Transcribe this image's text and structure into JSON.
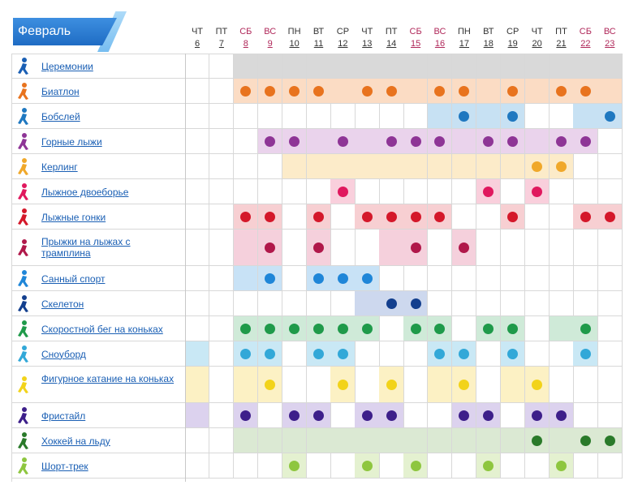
{
  "month": "Февраль",
  "days": [
    {
      "dow": "ЧТ",
      "num": "6",
      "weekend": false
    },
    {
      "dow": "ПТ",
      "num": "7",
      "weekend": false
    },
    {
      "dow": "СБ",
      "num": "8",
      "weekend": true
    },
    {
      "dow": "ВС",
      "num": "9",
      "weekend": true
    },
    {
      "dow": "ПН",
      "num": "10",
      "weekend": false
    },
    {
      "dow": "ВТ",
      "num": "11",
      "weekend": false
    },
    {
      "dow": "СР",
      "num": "12",
      "weekend": false
    },
    {
      "dow": "ЧТ",
      "num": "13",
      "weekend": false
    },
    {
      "dow": "ПТ",
      "num": "14",
      "weekend": false
    },
    {
      "dow": "СБ",
      "num": "15",
      "weekend": true
    },
    {
      "dow": "ВС",
      "num": "16",
      "weekend": true
    },
    {
      "dow": "ПН",
      "num": "17",
      "weekend": false
    },
    {
      "dow": "ВТ",
      "num": "18",
      "weekend": false
    },
    {
      "dow": "СР",
      "num": "19",
      "weekend": false
    },
    {
      "dow": "ЧТ",
      "num": "20",
      "weekend": false
    },
    {
      "dow": "ПТ",
      "num": "21",
      "weekend": false
    },
    {
      "dow": "СБ",
      "num": "22",
      "weekend": true
    },
    {
      "dow": "ВС",
      "num": "23",
      "weekend": true
    }
  ],
  "sports": [
    {
      "name": "Церемонии",
      "slug": "ceremonies",
      "icon": "torch-icon",
      "color": "#1a5fb4",
      "light": "#d9d9d9",
      "tall": false,
      "events": [
        0,
        0,
        1,
        1,
        1,
        1,
        1,
        1,
        1,
        1,
        1,
        1,
        1,
        1,
        1,
        1,
        1,
        1
      ],
      "medals": []
    },
    {
      "name": "Биатлон",
      "slug": "biathlon",
      "icon": "biathlon-icon",
      "color": "#e8731e",
      "light": "#fbdcc4",
      "tall": false,
      "events": [
        0,
        0,
        1,
        1,
        1,
        1,
        1,
        1,
        1,
        1,
        1,
        1,
        1,
        1,
        1,
        1,
        1,
        1
      ],
      "medals": [
        2,
        3,
        4,
        5,
        7,
        8,
        10,
        11,
        13,
        15,
        16
      ]
    },
    {
      "name": "Бобслей",
      "slug": "bobsleigh",
      "icon": "bobsleigh-icon",
      "color": "#1f78c0",
      "light": "#c7e1f3",
      "tall": false,
      "events": [
        0,
        0,
        0,
        0,
        0,
        0,
        0,
        0,
        0,
        0,
        1,
        1,
        1,
        1,
        0,
        0,
        1,
        1
      ],
      "medals": [
        11,
        13,
        17
      ]
    },
    {
      "name": "Горные лыжи",
      "slug": "alpine-skiing",
      "icon": "alpine-skiing-icon",
      "color": "#8e3596",
      "light": "#ead3ec",
      "tall": false,
      "events": [
        0,
        0,
        0,
        1,
        1,
        1,
        1,
        1,
        1,
        1,
        1,
        1,
        1,
        1,
        1,
        1,
        1,
        0
      ],
      "medals": [
        3,
        4,
        6,
        8,
        9,
        10,
        12,
        13,
        15,
        16
      ]
    },
    {
      "name": "Керлинг",
      "slug": "curling",
      "icon": "curling-icon",
      "color": "#f0a82a",
      "light": "#fcebc9",
      "tall": false,
      "events": [
        0,
        0,
        0,
        0,
        1,
        1,
        1,
        1,
        1,
        1,
        1,
        1,
        1,
        1,
        1,
        1,
        0,
        0
      ],
      "medals": [
        14,
        15
      ]
    },
    {
      "name": "Лыжное двоеборье",
      "slug": "nordic-combined",
      "icon": "nordic-combined-icon",
      "color": "#e0185e",
      "light": "#f9cfdc",
      "tall": false,
      "events": [
        0,
        0,
        0,
        0,
        0,
        0,
        1,
        0,
        0,
        0,
        0,
        0,
        1,
        0,
        1,
        0,
        0,
        0
      ],
      "medals": [
        6,
        12,
        14
      ]
    },
    {
      "name": "Лыжные гонки",
      "slug": "cross-country",
      "icon": "cross-country-icon",
      "color": "#d4182a",
      "light": "#f7cfd2",
      "tall": false,
      "events": [
        0,
        0,
        1,
        1,
        0,
        1,
        0,
        1,
        1,
        1,
        1,
        0,
        0,
        1,
        0,
        0,
        1,
        1
      ],
      "medals": [
        2,
        3,
        5,
        7,
        8,
        9,
        10,
        13,
        16,
        17
      ]
    },
    {
      "name": "Прыжки на лыжах с трамплина",
      "slug": "ski-jumping",
      "icon": "ski-jumping-icon",
      "color": "#b0184a",
      "light": "#f5d0dc",
      "tall": true,
      "events": [
        0,
        0,
        1,
        1,
        0,
        1,
        0,
        0,
        1,
        1,
        0,
        1,
        0,
        0,
        0,
        0,
        0,
        0
      ],
      "medals": [
        3,
        5,
        9,
        11
      ]
    },
    {
      "name": "Санный спорт",
      "slug": "luge",
      "icon": "luge-icon",
      "color": "#1f86d8",
      "light": "#c8e2f6",
      "tall": false,
      "events": [
        0,
        0,
        1,
        1,
        0,
        1,
        1,
        1,
        0,
        0,
        0,
        0,
        0,
        0,
        0,
        0,
        0,
        0
      ],
      "medals": [
        3,
        5,
        6,
        7
      ]
    },
    {
      "name": "Скелетон",
      "slug": "skeleton",
      "icon": "skeleton-icon",
      "color": "#133f8e",
      "light": "#cdd8ee",
      "tall": false,
      "events": [
        0,
        0,
        0,
        0,
        0,
        0,
        0,
        1,
        1,
        1,
        0,
        0,
        0,
        0,
        0,
        0,
        0,
        0
      ],
      "medals": [
        8,
        9
      ]
    },
    {
      "name": "Скоростной бег на коньках",
      "slug": "speed-skating",
      "icon": "speed-skating-icon",
      "color": "#1f9a4a",
      "light": "#cfead8",
      "tall": false,
      "events": [
        0,
        0,
        1,
        1,
        1,
        1,
        1,
        1,
        0,
        1,
        1,
        0,
        1,
        1,
        0,
        1,
        1,
        0
      ],
      "medals": [
        2,
        3,
        4,
        5,
        6,
        7,
        9,
        10,
        12,
        13,
        16
      ]
    },
    {
      "name": "Сноуборд",
      "slug": "snowboard",
      "icon": "snowboard-icon",
      "color": "#32a8d8",
      "light": "#c9e8f5",
      "tall": false,
      "events": [
        1,
        0,
        1,
        1,
        0,
        1,
        1,
        0,
        0,
        0,
        1,
        1,
        0,
        1,
        0,
        0,
        1,
        0
      ],
      "medals": [
        2,
        3,
        5,
        6,
        10,
        11,
        13,
        16
      ]
    },
    {
      "name": "Фигурное катание на коньках",
      "slug": "figure-skating",
      "icon": "figure-skating-icon",
      "color": "#f2d31a",
      "light": "#fcf1c4",
      "tall": true,
      "events": [
        1,
        0,
        1,
        1,
        0,
        0,
        1,
        0,
        1,
        0,
        1,
        1,
        0,
        1,
        1,
        0,
        0,
        0
      ],
      "medals": [
        3,
        6,
        8,
        11,
        14
      ]
    },
    {
      "name": "Фристайл",
      "slug": "freestyle",
      "icon": "freestyle-icon",
      "color": "#3d1f8a",
      "light": "#dcd2ee",
      "tall": false,
      "events": [
        1,
        0,
        1,
        0,
        1,
        1,
        0,
        1,
        1,
        0,
        0,
        1,
        1,
        0,
        1,
        1,
        0,
        0
      ],
      "medals": [
        2,
        4,
        5,
        7,
        8,
        11,
        12,
        14,
        15
      ]
    },
    {
      "name": "Хоккей на льду",
      "slug": "ice-hockey",
      "icon": "ice-hockey-icon",
      "color": "#2a7a2a",
      "light": "#dbe9d3",
      "tall": false,
      "events": [
        0,
        0,
        1,
        1,
        1,
        1,
        1,
        1,
        1,
        1,
        1,
        1,
        1,
        1,
        1,
        1,
        1,
        1
      ],
      "medals": [
        14,
        16,
        17
      ]
    },
    {
      "name": "Шорт-трек",
      "slug": "short-track",
      "icon": "short-track-icon",
      "color": "#8ec63f",
      "light": "#e4f1d0",
      "tall": false,
      "events": [
        0,
        0,
        0,
        0,
        1,
        0,
        0,
        1,
        0,
        1,
        0,
        0,
        1,
        0,
        0,
        1,
        0,
        0
      ],
      "medals": [
        4,
        7,
        9,
        12,
        15
      ]
    }
  ]
}
